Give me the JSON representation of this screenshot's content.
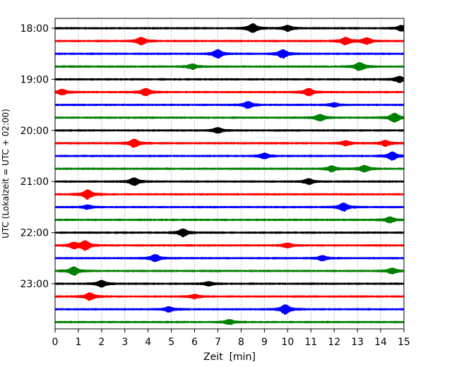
{
  "chart_data": {
    "type": "line",
    "title": "",
    "xlabel": "Zeit  [min]",
    "ylabel": "UTC (Lokalzeit = UTC + 02:00)",
    "xlim": [
      0,
      15
    ],
    "x_ticks": [
      "0",
      "1",
      "2",
      "3",
      "4",
      "5",
      "6",
      "7",
      "8",
      "9",
      "10",
      "11",
      "12",
      "13",
      "14",
      "15"
    ],
    "y_ticks": [
      "18:00",
      "19:00",
      "20:00",
      "21:00",
      "22:00",
      "23:00"
    ],
    "grid": "vertical dotted at each minute",
    "colors": [
      "#000000",
      "#ff0000",
      "#0000ff",
      "#008000"
    ],
    "series": [
      {
        "start": "18:00",
        "color": "#000000",
        "events": [
          [
            8.5,
            1.0
          ],
          [
            10.0,
            0.6
          ],
          [
            14.9,
            0.6
          ]
        ]
      },
      {
        "start": "18:15",
        "color": "#ff0000",
        "events": [
          [
            3.7,
            0.8
          ],
          [
            12.5,
            0.8
          ],
          [
            13.4,
            0.7
          ]
        ]
      },
      {
        "start": "18:30",
        "color": "#0000ff",
        "events": [
          [
            7.0,
            0.9
          ],
          [
            9.8,
            0.9
          ]
        ]
      },
      {
        "start": "18:45",
        "color": "#008000",
        "events": [
          [
            5.9,
            0.5
          ],
          [
            13.1,
            0.9
          ]
        ]
      },
      {
        "start": "19:00",
        "color": "#000000",
        "events": [
          [
            14.8,
            0.6
          ]
        ]
      },
      {
        "start": "19:15",
        "color": "#ff0000",
        "events": [
          [
            0.3,
            0.6
          ],
          [
            3.9,
            0.8
          ],
          [
            10.9,
            0.8
          ]
        ]
      },
      {
        "start": "19:30",
        "color": "#0000ff",
        "events": [
          [
            8.3,
            0.7
          ],
          [
            12.0,
            0.4
          ]
        ]
      },
      {
        "start": "19:45",
        "color": "#008000",
        "events": [
          [
            11.4,
            0.7
          ],
          [
            14.6,
            1.0
          ]
        ]
      },
      {
        "start": "20:00",
        "color": "#000000",
        "events": [
          [
            7.0,
            0.6
          ]
        ]
      },
      {
        "start": "20:15",
        "color": "#ff0000",
        "events": [
          [
            3.4,
            0.9
          ],
          [
            12.5,
            0.5
          ],
          [
            14.2,
            0.6
          ]
        ]
      },
      {
        "start": "20:30",
        "color": "#0000ff",
        "events": [
          [
            9.0,
            0.6
          ],
          [
            14.5,
            0.9
          ]
        ]
      },
      {
        "start": "20:45",
        "color": "#008000",
        "events": [
          [
            11.9,
            0.6
          ],
          [
            13.3,
            0.7
          ]
        ]
      },
      {
        "start": "21:00",
        "color": "#000000",
        "events": [
          [
            3.4,
            0.8
          ],
          [
            10.9,
            0.6
          ]
        ]
      },
      {
        "start": "21:15",
        "color": "#ff0000",
        "events": [
          [
            1.4,
            1.0
          ]
        ]
      },
      {
        "start": "21:30",
        "color": "#0000ff",
        "events": [
          [
            1.4,
            0.4
          ],
          [
            12.4,
            0.9
          ]
        ]
      },
      {
        "start": "21:45",
        "color": "#008000",
        "events": [
          [
            14.4,
            0.6
          ]
        ]
      },
      {
        "start": "22:00",
        "color": "#000000",
        "events": [
          [
            5.5,
            0.8
          ]
        ]
      },
      {
        "start": "22:15",
        "color": "#ff0000",
        "events": [
          [
            0.8,
            0.6
          ],
          [
            1.3,
            1.0
          ],
          [
            10.0,
            0.5
          ]
        ]
      },
      {
        "start": "22:30",
        "color": "#0000ff",
        "events": [
          [
            4.3,
            0.8
          ],
          [
            11.5,
            0.5
          ]
        ]
      },
      {
        "start": "22:45",
        "color": "#008000",
        "events": [
          [
            0.8,
            0.9
          ],
          [
            14.5,
            0.6
          ]
        ]
      },
      {
        "start": "23:00",
        "color": "#000000",
        "events": [
          [
            2.0,
            0.7
          ],
          [
            6.6,
            0.4
          ]
        ]
      },
      {
        "start": "23:15",
        "color": "#ff0000",
        "events": [
          [
            1.5,
            0.8
          ],
          [
            6.0,
            0.4
          ]
        ]
      },
      {
        "start": "23:30",
        "color": "#0000ff",
        "events": [
          [
            4.9,
            0.5
          ],
          [
            9.9,
            1.0
          ]
        ]
      },
      {
        "start": "23:45",
        "color": "#008000",
        "events": [
          [
            7.5,
            0.5
          ]
        ]
      }
    ]
  }
}
